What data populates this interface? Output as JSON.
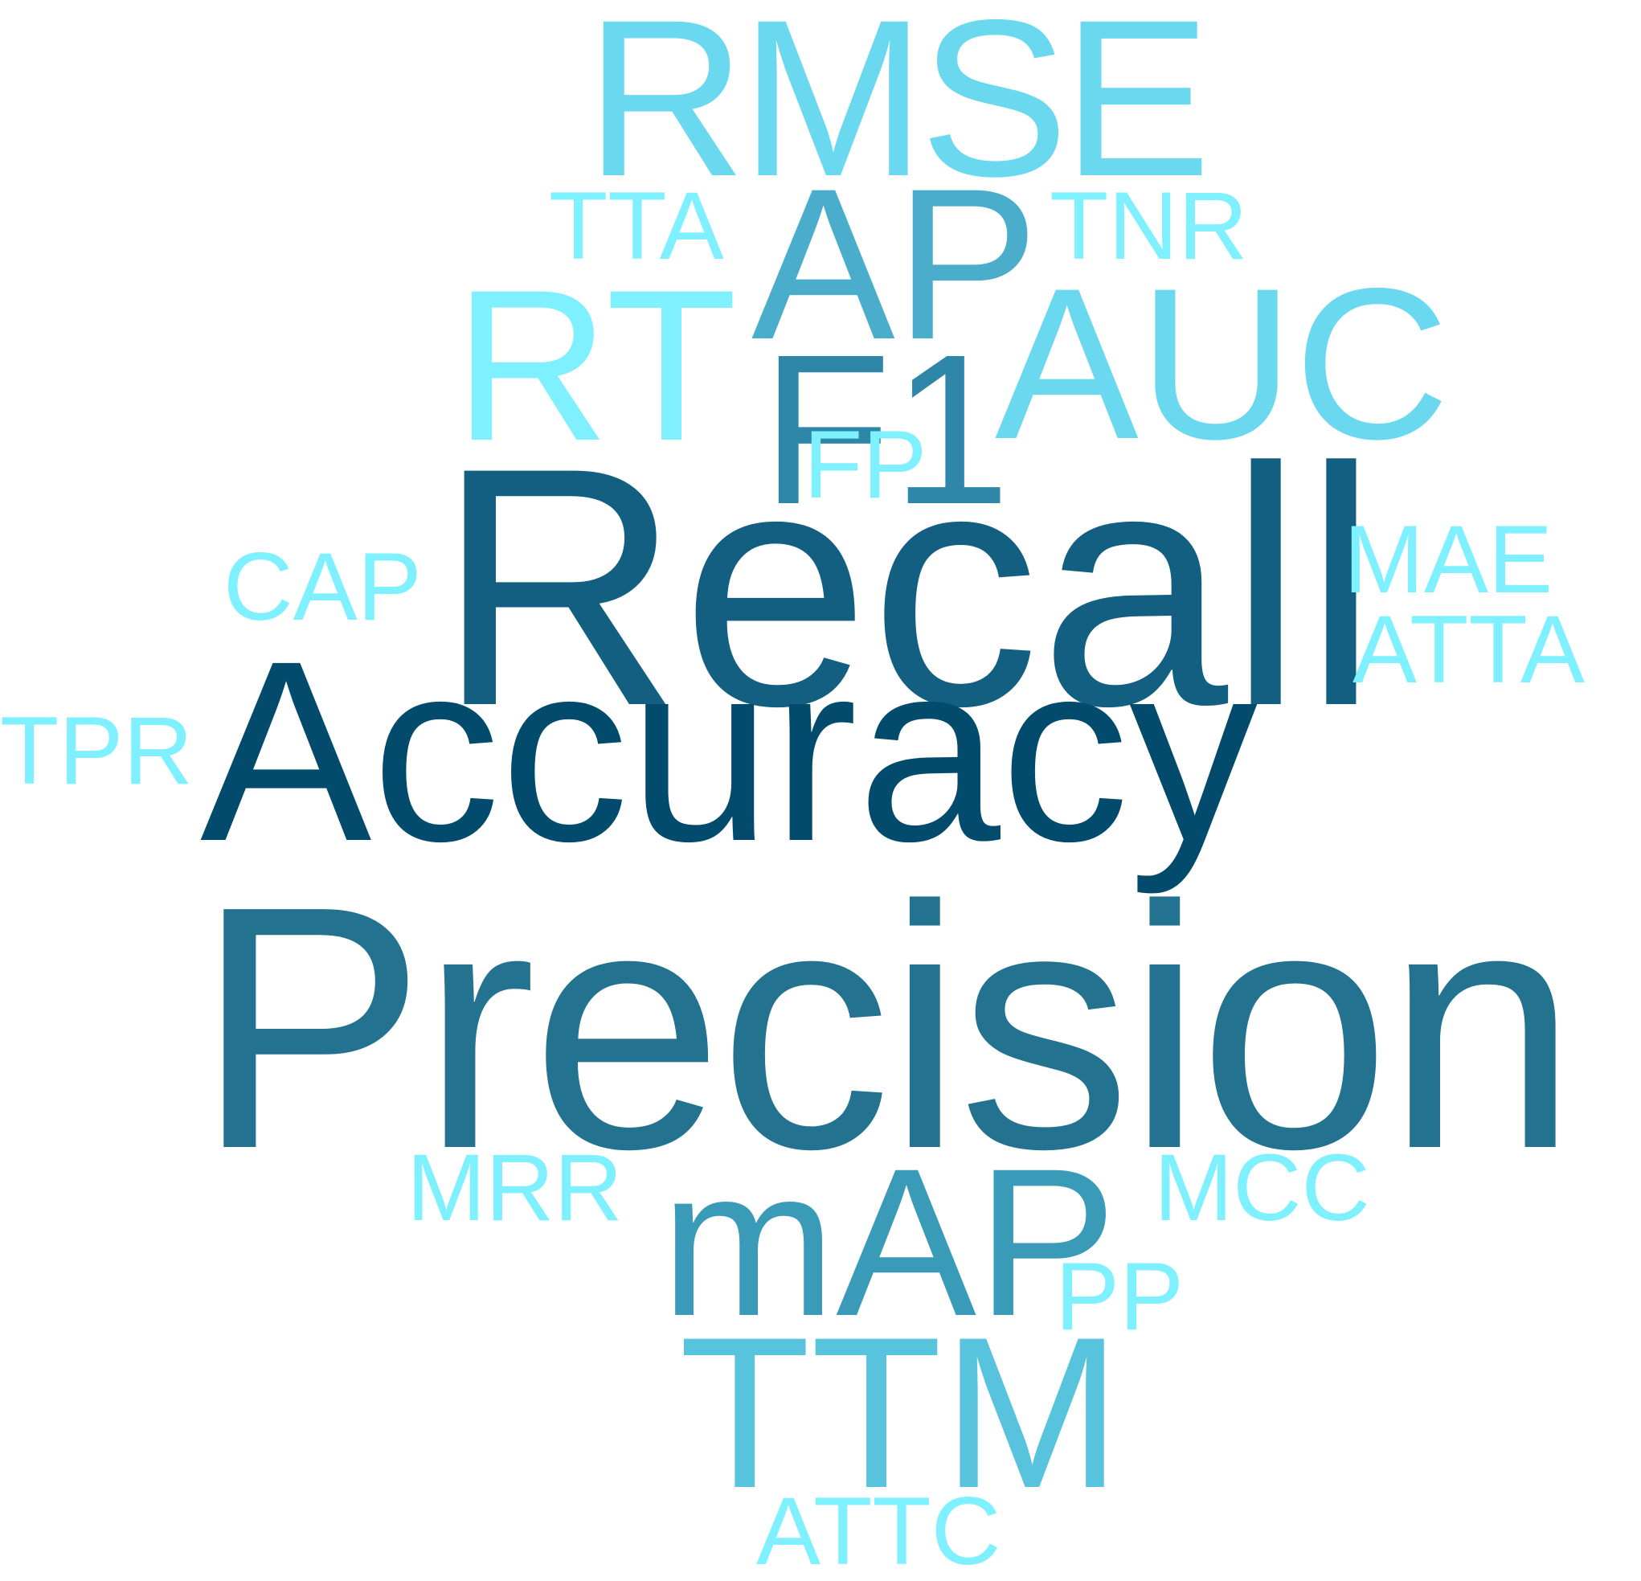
{
  "words": [
    {
      "text": "RMSE",
      "color": "#6ad8ef"
    },
    {
      "text": "TTA",
      "color": "#7ff0ff"
    },
    {
      "text": "AP",
      "color": "#49adcb"
    },
    {
      "text": "TNR",
      "color": "#7ff0ff"
    },
    {
      "text": "RT",
      "color": "#7ff0ff"
    },
    {
      "text": "F1",
      "color": "#2e87a8"
    },
    {
      "text": "AUC",
      "color": "#6ad8ef"
    },
    {
      "text": "FP",
      "color": "#7ff0ff"
    },
    {
      "text": "Recall",
      "color": "#135f82"
    },
    {
      "text": "CAP",
      "color": "#7ff0ff"
    },
    {
      "text": "MAE",
      "color": "#7ff0ff"
    },
    {
      "text": "ATTA",
      "color": "#7ff0ff"
    },
    {
      "text": "TPR",
      "color": "#7ff0ff"
    },
    {
      "text": "Accuracy",
      "color": "#034b6d"
    },
    {
      "text": "Precision",
      "color": "#23728f"
    },
    {
      "text": "MRR",
      "color": "#7ff0ff"
    },
    {
      "text": "mAP",
      "color": "#3a9bb9"
    },
    {
      "text": "MCC",
      "color": "#7ff0ff"
    },
    {
      "text": "PP",
      "color": "#7ff0ff"
    },
    {
      "text": "TTM",
      "color": "#58c3dd"
    },
    {
      "text": "ATTC",
      "color": "#7ff0ff"
    }
  ]
}
